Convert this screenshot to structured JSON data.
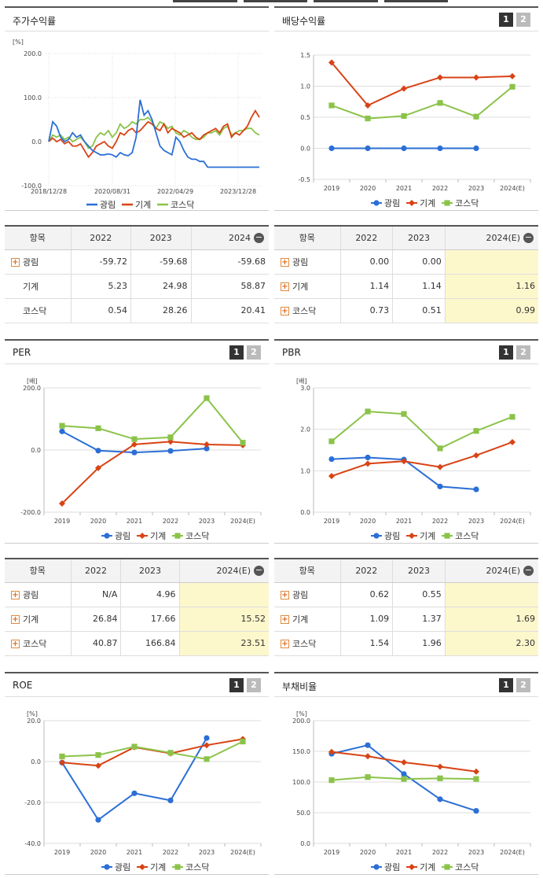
{
  "legend": {
    "a": "광림",
    "b": "기계",
    "c": "코스닥"
  },
  "colors": {
    "a": "#2b6fd6",
    "b": "#d84315",
    "c": "#8bc34a"
  },
  "pager": {
    "p1": "1",
    "p2": "2"
  },
  "chart_data": [
    {
      "id": "stock",
      "type": "line",
      "title": "주가수익률",
      "unit": "[%]",
      "x_ticks": [
        "2018/12/28",
        "2020/08/31",
        "2022/04/29",
        "2023/12/28"
      ],
      "y_ticks": [
        "200.0",
        "100.0",
        "0.0",
        "-100.0"
      ],
      "ylim": [
        -100,
        200
      ],
      "series": [
        {
          "name": "광림",
          "values": [
            0,
            45,
            35,
            10,
            0,
            5,
            20,
            10,
            15,
            0,
            -10,
            -20,
            -25,
            -30,
            -30,
            -28,
            -30,
            -35,
            -25,
            -30,
            -32,
            -25,
            10,
            95,
            60,
            70,
            50,
            20,
            -10,
            -20,
            -25,
            -30,
            10,
            0,
            -20,
            -35,
            -40,
            -40,
            -45,
            -45,
            -58,
            -58,
            -58,
            -58,
            -58,
            -58,
            -58,
            -58,
            -58,
            -58,
            -58,
            -58,
            -58,
            -58
          ]
        },
        {
          "name": "기계",
          "values": [
            0,
            8,
            0,
            5,
            -5,
            0,
            -10,
            -10,
            -5,
            -20,
            -35,
            -25,
            -10,
            -5,
            0,
            -10,
            -15,
            0,
            20,
            15,
            25,
            30,
            20,
            25,
            35,
            45,
            40,
            30,
            25,
            40,
            20,
            30,
            25,
            20,
            10,
            15,
            20,
            10,
            5,
            15,
            20,
            25,
            30,
            20,
            35,
            40,
            10,
            20,
            15,
            25,
            35,
            55,
            70,
            55
          ]
        },
        {
          "name": "코스닥",
          "values": [
            0,
            15,
            10,
            15,
            5,
            10,
            0,
            5,
            10,
            0,
            -15,
            -10,
            10,
            20,
            15,
            25,
            10,
            20,
            40,
            30,
            35,
            45,
            40,
            50,
            50,
            55,
            45,
            30,
            45,
            40,
            30,
            35,
            20,
            15,
            25,
            20,
            10,
            5,
            5,
            10,
            20,
            20,
            25,
            15,
            30,
            35,
            15,
            20,
            25,
            25,
            30,
            30,
            20,
            15
          ]
        }
      ]
    },
    {
      "id": "div",
      "type": "line",
      "title": "배당수익률",
      "unit": "",
      "categories": [
        "2019",
        "2020",
        "2021",
        "2022",
        "2023",
        "2024(E)"
      ],
      "y_ticks": [
        "1.5",
        "1.0",
        "0.5",
        "0.0",
        "-0.5"
      ],
      "ylim": [
        -0.5,
        1.5
      ],
      "series": [
        {
          "name": "광림",
          "values": [
            0.0,
            0.0,
            0.0,
            0.0,
            0.0,
            null
          ]
        },
        {
          "name": "기계",
          "values": [
            1.38,
            0.69,
            0.96,
            1.14,
            1.14,
            1.16
          ]
        },
        {
          "name": "코스닥",
          "values": [
            0.69,
            0.48,
            0.52,
            0.73,
            0.51,
            0.99
          ]
        }
      ]
    },
    {
      "id": "per",
      "type": "line",
      "title": "PER",
      "unit": "[배]",
      "categories": [
        "2019",
        "2020",
        "2021",
        "2022",
        "2023",
        "2024(E)"
      ],
      "y_ticks": [
        "200.0",
        "0.0",
        "-200.0"
      ],
      "ylim": [
        -200,
        200
      ],
      "series": [
        {
          "name": "광림",
          "values": [
            60,
            -2,
            -8,
            -3,
            4.96,
            null
          ]
        },
        {
          "name": "기계",
          "values": [
            -172,
            -58,
            18,
            26.84,
            17.66,
            15.52
          ]
        },
        {
          "name": "코스닥",
          "values": [
            78,
            70,
            35,
            40.87,
            166.84,
            23.51
          ]
        }
      ]
    },
    {
      "id": "pbr",
      "type": "line",
      "title": "PBR",
      "unit": "[배]",
      "categories": [
        "2019",
        "2020",
        "2021",
        "2022",
        "2023",
        "2024(E)"
      ],
      "y_ticks": [
        "3.0",
        "2.0",
        "1.0",
        "0.0"
      ],
      "ylim": [
        0,
        3
      ],
      "series": [
        {
          "name": "광림",
          "values": [
            1.28,
            1.32,
            1.27,
            0.62,
            0.55,
            null
          ]
        },
        {
          "name": "기계",
          "values": [
            0.87,
            1.17,
            1.23,
            1.09,
            1.37,
            1.69
          ]
        },
        {
          "name": "코스닥",
          "values": [
            1.71,
            2.43,
            2.37,
            1.54,
            1.96,
            2.3
          ]
        }
      ]
    },
    {
      "id": "roe",
      "type": "line",
      "title": "ROE",
      "unit": "[%]",
      "categories": [
        "2019",
        "2020",
        "2021",
        "2022",
        "2023",
        "2024(E)"
      ],
      "y_ticks": [
        "20.0",
        "0.0",
        "-20.0",
        "-40.0"
      ],
      "ylim": [
        -40,
        20
      ],
      "series": [
        {
          "name": "광림",
          "values": [
            -0.5,
            -28.5,
            -15.5,
            -19,
            11.5,
            null
          ]
        },
        {
          "name": "기계",
          "values": [
            -0.5,
            -2,
            7,
            4,
            8,
            11
          ]
        },
        {
          "name": "코스닥",
          "values": [
            2.5,
            3.2,
            7.3,
            4.3,
            1.2,
            9.8
          ]
        }
      ]
    },
    {
      "id": "debt",
      "type": "line",
      "title": "부채비율",
      "unit": "[%]",
      "categories": [
        "2019",
        "2020",
        "2021",
        "2022",
        "2023",
        "2024(E)"
      ],
      "y_ticks": [
        "200.0",
        "150.0",
        "100.0",
        "50.0",
        "0.0"
      ],
      "ylim": [
        0,
        200
      ],
      "series": [
        {
          "name": "광림",
          "values": [
            146,
            160,
            113,
            72,
            53,
            null
          ]
        },
        {
          "name": "기계",
          "values": [
            149,
            142,
            132,
            125,
            117,
            null
          ]
        },
        {
          "name": "코스닥",
          "values": [
            103,
            108,
            105,
            106,
            105,
            null
          ]
        }
      ]
    }
  ],
  "tables": {
    "stock": {
      "headers": [
        "항목",
        "2022",
        "2023",
        "2024"
      ],
      "rows": [
        {
          "label": "광림",
          "plus": true,
          "v": [
            "-59.72",
            "-59.68",
            "-59.68"
          ]
        },
        {
          "label": "기계",
          "plus": false,
          "v": [
            "5.23",
            "24.98",
            "58.87"
          ]
        },
        {
          "label": "코스닥",
          "plus": false,
          "v": [
            "0.54",
            "28.26",
            "20.41"
          ]
        }
      ]
    },
    "div": {
      "headers": [
        "항목",
        "2022",
        "2023",
        "2024(E)"
      ],
      "rows": [
        {
          "label": "광림",
          "plus": true,
          "v": [
            "0.00",
            "0.00",
            ""
          ]
        },
        {
          "label": "기계",
          "plus": true,
          "v": [
            "1.14",
            "1.14",
            "1.16"
          ]
        },
        {
          "label": "코스닥",
          "plus": true,
          "v": [
            "0.73",
            "0.51",
            "0.99"
          ]
        }
      ]
    },
    "per": {
      "headers": [
        "항목",
        "2022",
        "2023",
        "2024(E)"
      ],
      "rows": [
        {
          "label": "광림",
          "plus": true,
          "v": [
            "N/A",
            "4.96",
            ""
          ]
        },
        {
          "label": "기계",
          "plus": true,
          "v": [
            "26.84",
            "17.66",
            "15.52"
          ]
        },
        {
          "label": "코스닥",
          "plus": true,
          "v": [
            "40.87",
            "166.84",
            "23.51"
          ]
        }
      ]
    },
    "pbr": {
      "headers": [
        "항목",
        "2022",
        "2023",
        "2024(E)"
      ],
      "rows": [
        {
          "label": "광림",
          "plus": true,
          "v": [
            "0.62",
            "0.55",
            ""
          ]
        },
        {
          "label": "기계",
          "plus": true,
          "v": [
            "1.09",
            "1.37",
            "1.69"
          ]
        },
        {
          "label": "코스닥",
          "plus": true,
          "v": [
            "1.54",
            "1.96",
            "2.30"
          ]
        }
      ]
    }
  }
}
